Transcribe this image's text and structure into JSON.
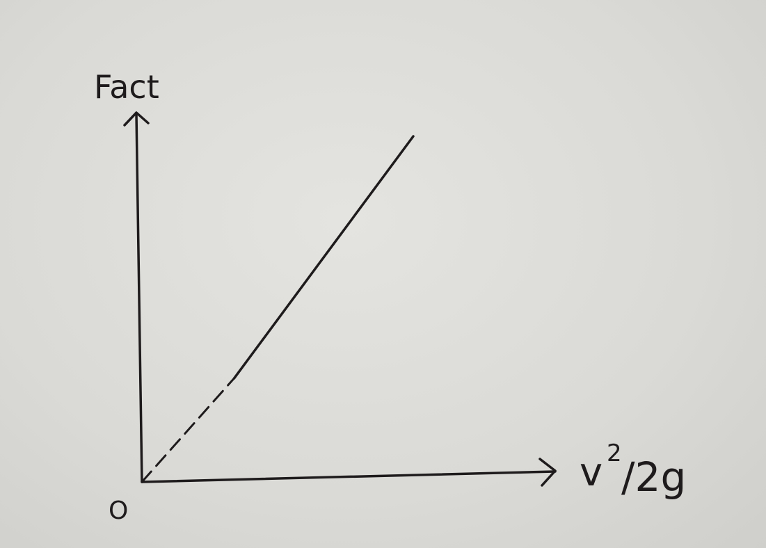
{
  "chart_data": {
    "type": "line",
    "ylabel": "Fact",
    "xlabel_main": "v",
    "xlabel_superscript": "2",
    "xlabel_rest": "/2g",
    "origin_label": "O",
    "series": [
      {
        "solid_segment": [
          [
            0.34,
            0.3
          ],
          [
            1.0,
            1.0
          ]
        ],
        "dashed_segment": [
          [
            0.0,
            0.0
          ],
          [
            0.34,
            0.3
          ]
        ]
      }
    ],
    "xlim": [
      0,
      1.44
    ],
    "ylim": [
      0,
      1.2
    ],
    "grid": false,
    "ink_color": "#1e1b1c",
    "paper_color": "#dcdcd8"
  }
}
